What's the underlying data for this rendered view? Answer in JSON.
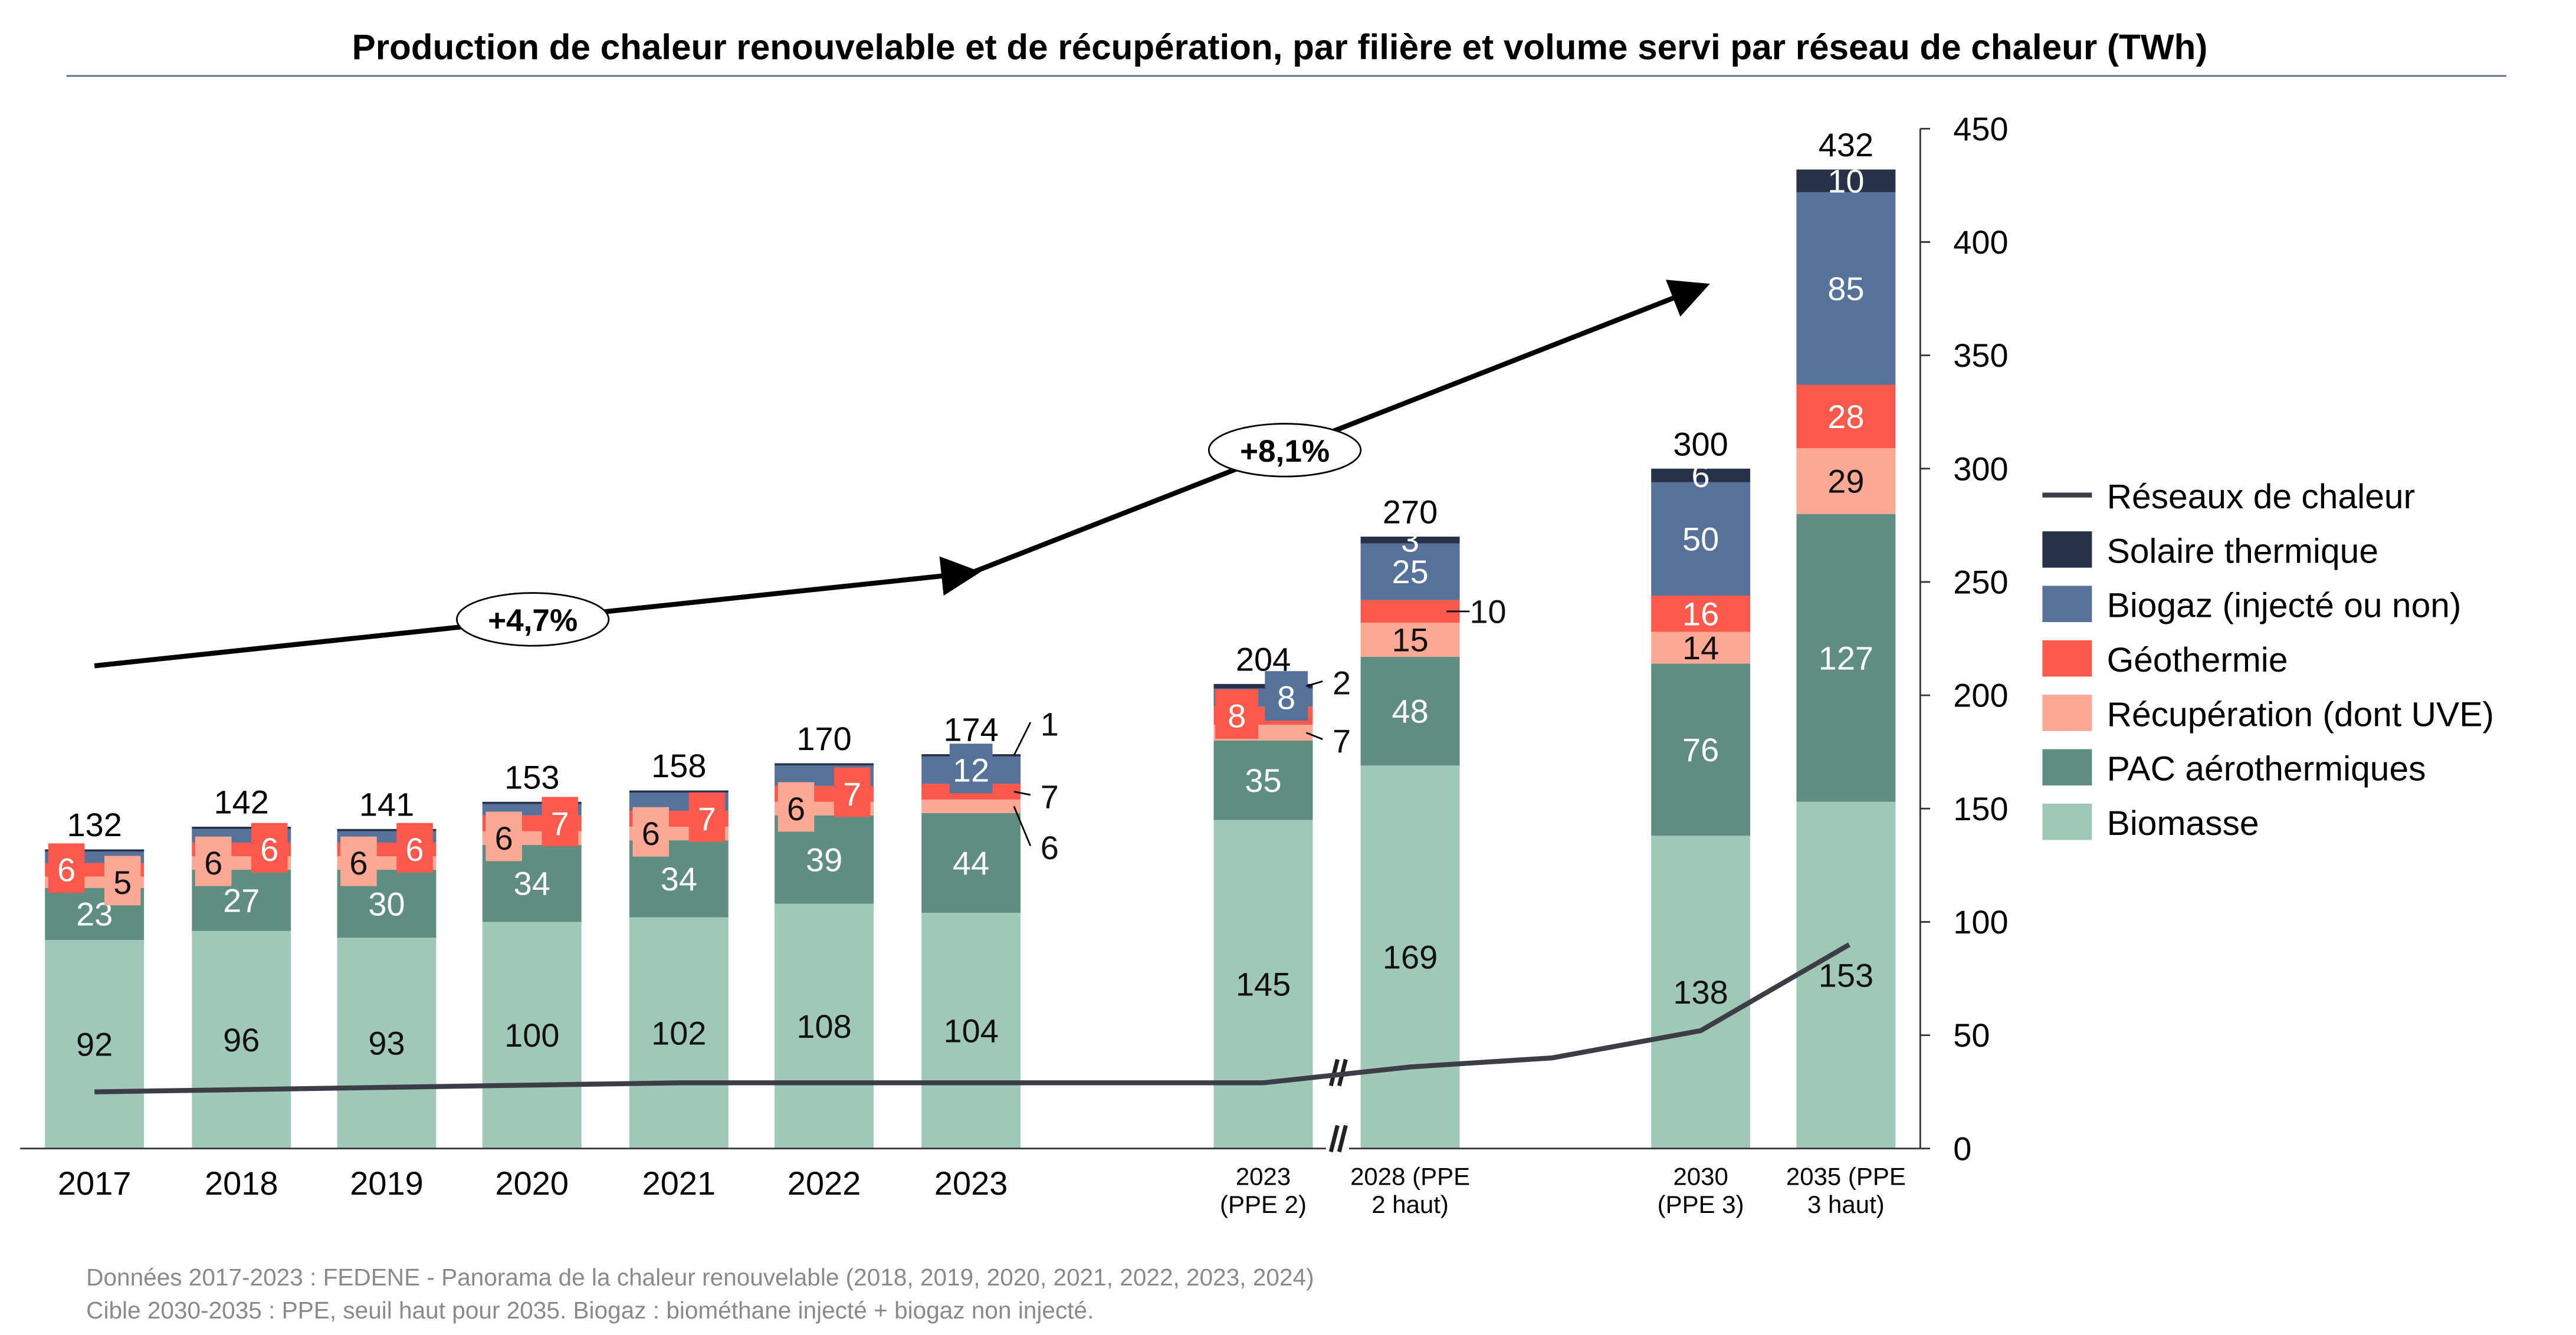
{
  "chart_data": {
    "type": "bar",
    "stacked": true,
    "title": "Production de chaleur renouvelable et de récupération, par filière et volume servi par réseau de chaleur (TWh)",
    "categories": [
      [
        "2017"
      ],
      [
        "2018"
      ],
      [
        "2019"
      ],
      [
        "2020"
      ],
      [
        "2021"
      ],
      [
        "2022"
      ],
      [
        "2023"
      ],
      [
        "2023",
        "(PPE 2)"
      ],
      [
        "2028 (PPE",
        "2 haut)"
      ],
      [
        "2030",
        "(PPE 3)"
      ],
      [
        "2035 (PPE",
        "3 haut)"
      ]
    ],
    "ylim": [
      0,
      450
    ],
    "yticks": [
      0,
      50,
      100,
      150,
      200,
      250,
      300,
      350,
      400,
      450
    ],
    "axis_position": "right",
    "series": [
      {
        "name": "Biomasse",
        "color": "#a0c8b9",
        "text_color": "#111111",
        "values": [
          92,
          96,
          93,
          100,
          102,
          108,
          104,
          145,
          169,
          138,
          153
        ]
      },
      {
        "name": "PAC aérothermiques",
        "color": "#5f8d82",
        "text_color": "#ffffff",
        "values": [
          23,
          27,
          30,
          34,
          34,
          39,
          44,
          35,
          48,
          76,
          127
        ]
      },
      {
        "name": "Récupération (dont UVE)",
        "color": "#fca895",
        "text_color": "#111111",
        "values": [
          5,
          6,
          6,
          6,
          6,
          6,
          6,
          7,
          15,
          14,
          29
        ]
      },
      {
        "name": "Géothermie",
        "color": "#fc584b",
        "text_color": "#ffffff",
        "values": [
          6,
          6,
          6,
          7,
          7,
          7,
          7,
          8,
          10,
          16,
          28
        ]
      },
      {
        "name": "Biogaz (injecté ou non)",
        "color": "#56729a",
        "text_color": "#ffffff",
        "values": [
          5,
          6,
          5,
          5,
          8,
          9,
          12,
          8,
          25,
          50,
          85
        ],
        "labeled": [
          false,
          false,
          false,
          false,
          false,
          false,
          true,
          true,
          true,
          true,
          true
        ]
      },
      {
        "name": "Solaire thermique",
        "color": "#26314a",
        "text_color": "#ffffff",
        "values": [
          1,
          1,
          1,
          1,
          1,
          1,
          1,
          2,
          3,
          6,
          10
        ],
        "labeled": [
          false,
          false,
          false,
          false,
          false,
          false,
          true,
          true,
          true,
          true,
          true
        ]
      }
    ],
    "totals": [
      132,
      142,
      141,
      153,
      158,
      170,
      174,
      204,
      270,
      300,
      432
    ],
    "line_series": {
      "name": "Réseaux de chaleur",
      "color": "#3d3d48",
      "values": [
        25,
        26,
        27,
        28,
        29,
        29,
        29,
        29,
        36,
        52,
        90
      ]
    },
    "annotations": [
      {
        "text": "+4,7%",
        "from_category": 0,
        "to_category": 6,
        "from_value": 213,
        "to_value": 254
      },
      {
        "text": "+8,1%",
        "from_category": 6,
        "to_category": 9,
        "from_value": 254,
        "to_value": 380
      }
    ],
    "legend": [
      "Réseaux de chaleur",
      "Solaire thermique",
      "Biogaz (injecté ou non)",
      "Géothermie",
      "Récupération (dont UVE)",
      "PAC aérothermiques",
      "Biomasse"
    ],
    "legend_position": "right"
  },
  "footer": {
    "line1": "Données 2017-2023 : FEDENE - Panorama de la chaleur renouvelable (2018, 2019, 2020, 2021, 2022, 2023, 2024)",
    "line2": "Cible 2030-2035 : PPE, seuil haut pour 2035. Biogaz : biométhane injecté + biogaz non injecté."
  }
}
